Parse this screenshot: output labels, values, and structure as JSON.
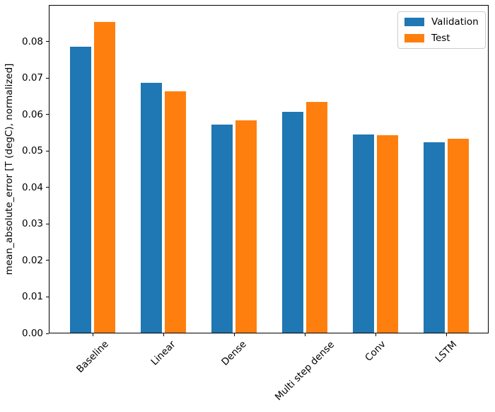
{
  "figure": {
    "background": "#ffffff"
  },
  "chart_data": {
    "type": "bar",
    "title": "",
    "xlabel": "",
    "ylabel": "mean_absolute_error [T (degC), normalized]",
    "categories": [
      "Baseline",
      "Linear",
      "Dense",
      "Multi step dense",
      "Conv",
      "LSTM"
    ],
    "series": [
      {
        "name": "Validation",
        "color": "#1f77b4",
        "values": [
          0.0785,
          0.0687,
          0.0572,
          0.0607,
          0.0545,
          0.0524
        ]
      },
      {
        "name": "Test",
        "color": "#ff7f0e",
        "values": [
          0.0853,
          0.0664,
          0.0583,
          0.0634,
          0.0543,
          0.0533
        ]
      }
    ],
    "ylim": [
      0,
      0.09
    ],
    "yticks": {
      "values": [
        0.0,
        0.01,
        0.02,
        0.03,
        0.04,
        0.05,
        0.06,
        0.07,
        0.08
      ],
      "labels": [
        "0.00",
        "0.01",
        "0.02",
        "0.03",
        "0.04",
        "0.05",
        "0.06",
        "0.07",
        "0.08"
      ]
    },
    "grid": false,
    "xtick_rotation": 45,
    "legend": {
      "location": "upper right",
      "entries": [
        "Validation",
        "Test"
      ]
    }
  }
}
